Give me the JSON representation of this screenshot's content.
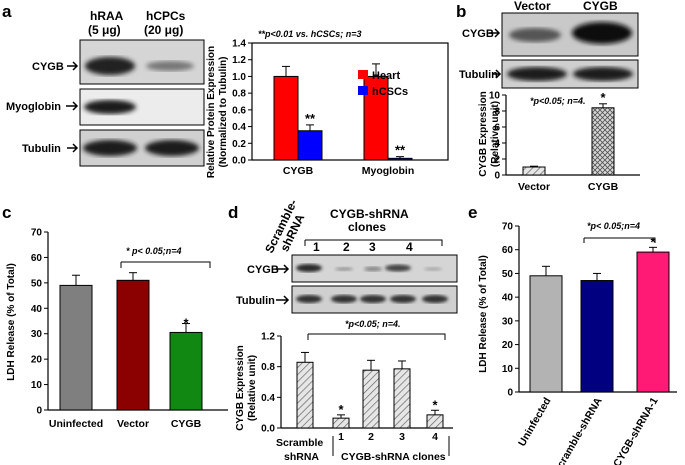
{
  "panels": {
    "a": {
      "label": "a",
      "lanes": [
        "hRAA",
        "hCPCs"
      ],
      "lane_loads": [
        "(5 μg)",
        "(20 μg)"
      ],
      "blots": [
        "CYGB",
        "Myoglobin",
        "Tubulin"
      ],
      "chart": {
        "note": "**p<0.01 vs. hCSCs; n=3",
        "ylabel_line1": "Relative Protein Expression",
        "ylabel_line2": "(Normalized to Tubulin)",
        "yticks": [
          "0.0",
          "0.2",
          "0.4",
          "0.6",
          "0.8",
          "1.0",
          "1.2",
          "1.4"
        ],
        "legend": [
          "Heart",
          "hCSCs"
        ],
        "categories": [
          "CYGB",
          "Myoglobin"
        ],
        "stars": [
          "**",
          "**"
        ]
      }
    },
    "b": {
      "label": "b",
      "lanes": [
        "Vector",
        "CYGB"
      ],
      "blots": [
        "CYGB",
        "Tubulin"
      ],
      "chart": {
        "note": "*p<0.05; n=4.",
        "ylabel_line1": "CYGB Expression",
        "ylabel_line2": "(Relative unit)",
        "yticks": [
          "0",
          "2",
          "4",
          "6",
          "8",
          "10"
        ],
        "categories": [
          "Vector",
          "CYGB"
        ],
        "stars": [
          "*"
        ]
      }
    },
    "c": {
      "label": "c",
      "chart": {
        "note": "* p< 0.05;n=4",
        "ylabel": "LDH Release (% of Total)",
        "yticks": [
          "0",
          "10",
          "20",
          "30",
          "40",
          "50",
          "60",
          "70"
        ],
        "categories": [
          "Uninfected",
          "Vector",
          "CYGB"
        ],
        "stars": [
          "*"
        ]
      }
    },
    "d": {
      "label": "d",
      "lanes_left_line1": "Scramble-",
      "lanes_left_line2": "shRNA",
      "clones_title_line1": "CYGB-shRNA",
      "clones_title_line2": "clones",
      "clone_numbers": [
        "1",
        "2",
        "3",
        "4"
      ],
      "blots": [
        "CYGB",
        "Tubulin"
      ],
      "chart": {
        "note": "*p<0.05; n=4.",
        "ylabel_line1": "CYGB Expression",
        "ylabel_line2": "(Relative unit)",
        "yticks": [
          "0.0",
          "0.4",
          "0.8",
          "1.2"
        ],
        "x_numbers": [
          "1",
          "2",
          "3",
          "4"
        ],
        "x_left_line1": "Scramble",
        "x_left_line2": "shRNA",
        "x_group": "CYGB-shRNA clones",
        "stars": [
          "*",
          "*"
        ]
      }
    },
    "e": {
      "label": "e",
      "chart": {
        "note": "*p< 0.05;n=4",
        "ylabel": "LDH Release (% of Total)",
        "yticks": [
          "0",
          "10",
          "20",
          "30",
          "40",
          "50",
          "60",
          "70"
        ],
        "categories": [
          "Uninfected",
          "Scramble-shRNA",
          "CYGB-shRNA-1"
        ],
        "stars": [
          "*"
        ]
      }
    }
  },
  "chart_data": [
    {
      "panel": "a",
      "type": "bar",
      "categories": [
        "CYGB",
        "Myoglobin"
      ],
      "series": [
        {
          "name": "Heart",
          "values": [
            1.0,
            1.0
          ],
          "errors": [
            0.12,
            0.15
          ],
          "color": "#ff0000"
        },
        {
          "name": "hCSCs",
          "values": [
            0.35,
            0.02
          ],
          "errors": [
            0.07,
            0.02
          ],
          "color": "#0000ff"
        }
      ],
      "ylabel": "Relative Protein Expression (Normalized to Tubulin)",
      "ylim": [
        0,
        1.4
      ],
      "legend": "top-right"
    },
    {
      "panel": "b",
      "type": "bar",
      "categories": [
        "Vector",
        "CYGB"
      ],
      "values": [
        1.0,
        8.4
      ],
      "errors": [
        0.1,
        0.5
      ],
      "ylabel": "CYGB Expression (Relative unit)",
      "ylim": [
        0,
        10
      ]
    },
    {
      "panel": "c",
      "type": "bar",
      "categories": [
        "Uninfected",
        "Vector",
        "CYGB"
      ],
      "values": [
        49,
        51,
        30.5
      ],
      "errors": [
        4,
        3,
        3.5
      ],
      "colors": [
        "#7f7f7f",
        "#8b0000",
        "#118811"
      ],
      "ylabel": "LDH Release (% of Total)",
      "ylim": [
        0,
        70
      ]
    },
    {
      "panel": "d",
      "type": "bar",
      "categories": [
        "Scramble shRNA",
        "1",
        "2",
        "3",
        "4"
      ],
      "values": [
        1.0,
        0.15,
        0.88,
        0.9,
        0.2
      ],
      "errors": [
        0.15,
        0.05,
        0.15,
        0.12,
        0.07
      ],
      "ylabel": "CYGB Expression (Relative unit)",
      "ylim": [
        0,
        1.4
      ]
    },
    {
      "panel": "e",
      "type": "bar",
      "categories": [
        "Uninfected",
        "Scramble-shRNA",
        "CYGB-shRNA-1"
      ],
      "values": [
        49,
        47,
        59
      ],
      "errors": [
        4,
        3,
        2
      ],
      "colors": [
        "#b3b3b3",
        "#000080",
        "#ff1a75"
      ],
      "ylabel": "LDH Release (% of Total)",
      "ylim": [
        0,
        70
      ]
    }
  ]
}
